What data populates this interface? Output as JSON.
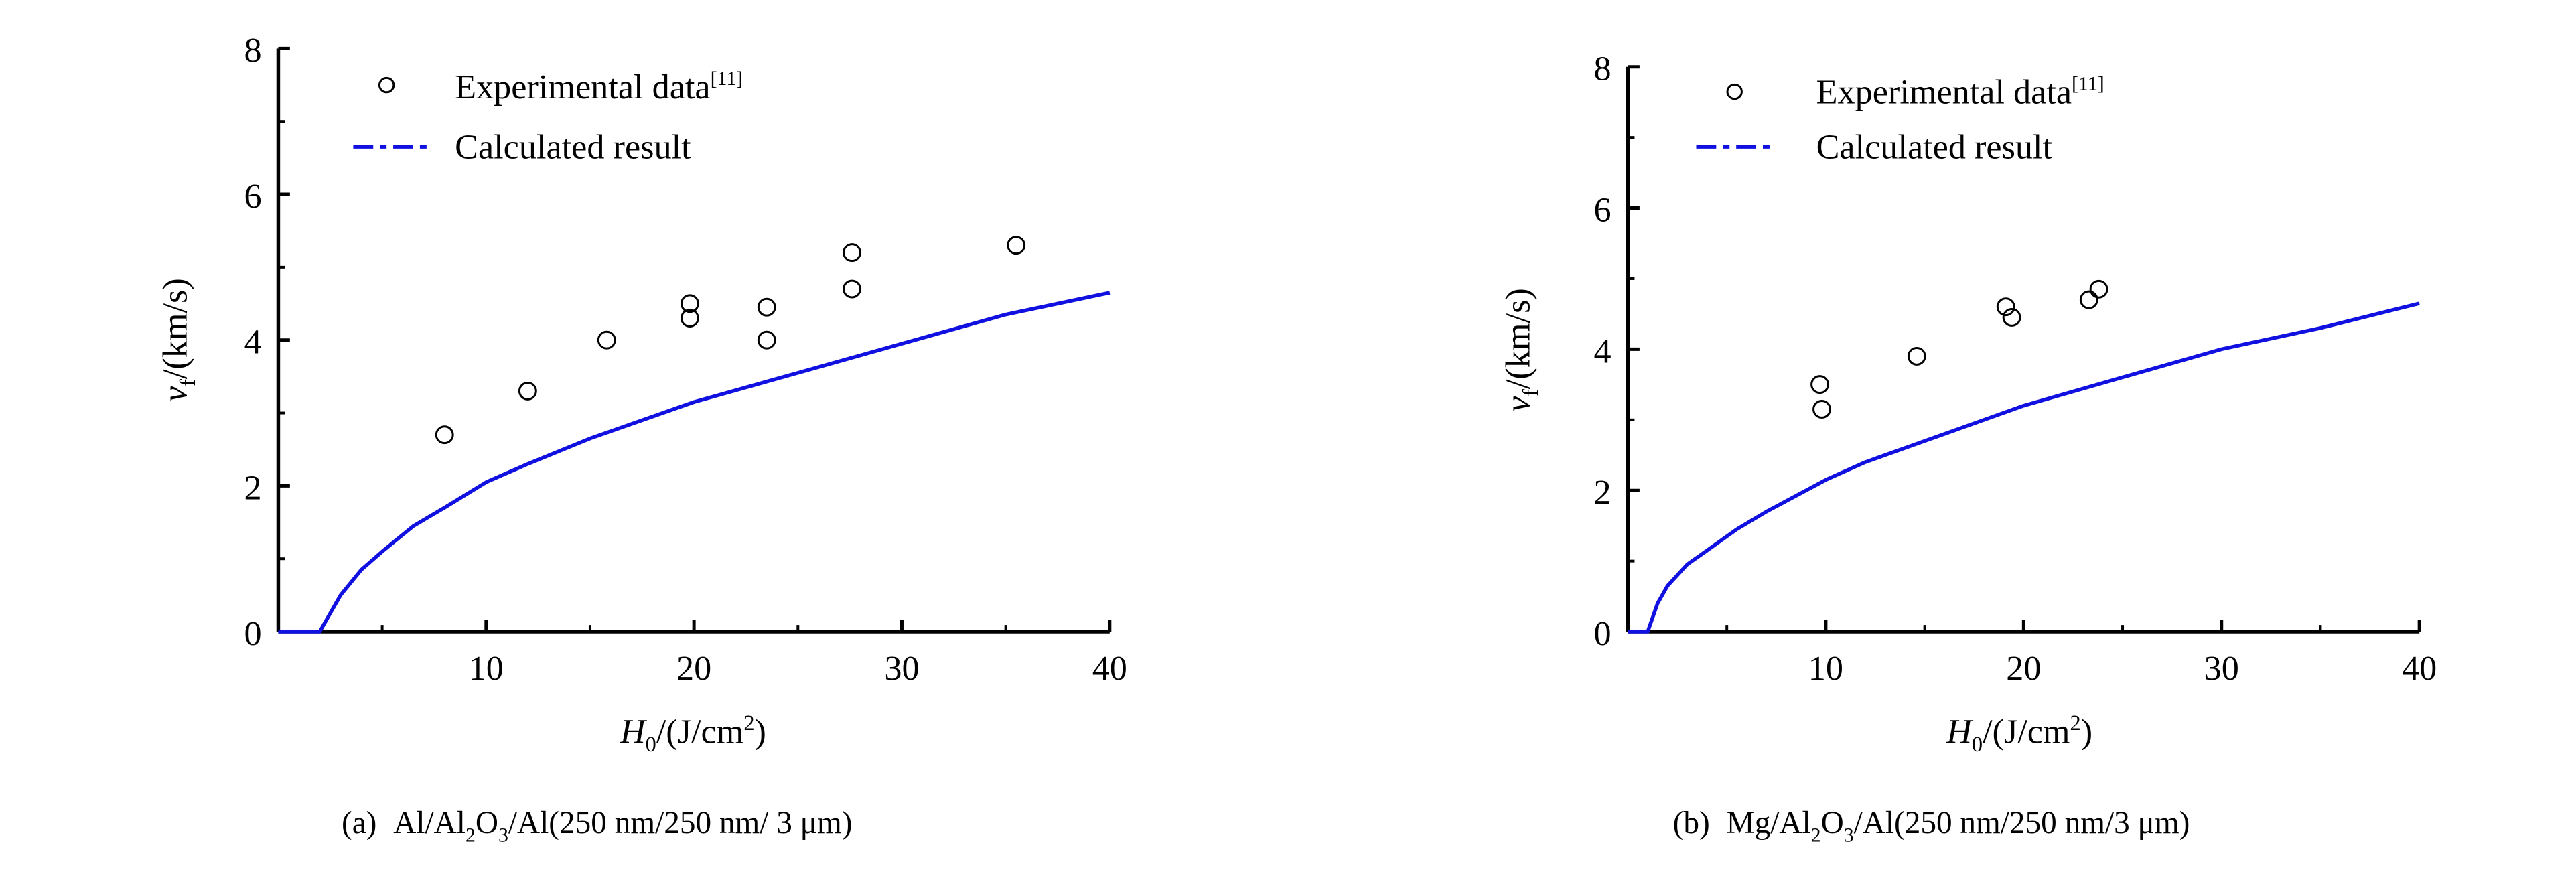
{
  "chart_data": [
    {
      "type": "scatter+line",
      "panel": "a",
      "caption": {
        "prefix": "(a)",
        "p1": "Al/Al",
        "sub1": "2",
        "p2": "O",
        "sub2": "3",
        "p3": "/Al(250 nm/250 nm/ 3 μm)"
      },
      "xlabel": {
        "var": "H",
        "sub": "0",
        "unit": "/(J/cm",
        "sup": "2",
        "close": ")"
      },
      "ylabel": {
        "var": "v",
        "sub": "f",
        "unit": "/(km/s)"
      },
      "xlim": [
        0,
        40
      ],
      "ylim": [
        0,
        8
      ],
      "xticks": [
        10,
        20,
        30,
        40
      ],
      "xminor": [
        5,
        15,
        25,
        35
      ],
      "yticks": [
        0,
        2,
        4,
        6,
        8
      ],
      "yminor": [
        1,
        3,
        5,
        7
      ],
      "grid": false,
      "legend": {
        "position": "top-left",
        "experimental": "Experimental data",
        "experimental_ref": "[11]",
        "calculated": "Calculated result"
      },
      "colors": {
        "calculated": "#1010e0",
        "experimental": "#000000"
      },
      "experimental": [
        [
          8,
          2.7
        ],
        [
          12,
          3.3
        ],
        [
          15.8,
          4.0
        ],
        [
          19.8,
          4.5
        ],
        [
          19.8,
          4.3
        ],
        [
          23.5,
          4.45
        ],
        [
          23.5,
          4.0
        ],
        [
          27.6,
          5.2
        ],
        [
          27.6,
          4.7
        ],
        [
          35.5,
          5.3
        ]
      ],
      "calculated": [
        [
          0,
          0
        ],
        [
          2,
          0
        ],
        [
          3,
          0.5
        ],
        [
          4,
          0.85
        ],
        [
          5,
          1.1
        ],
        [
          6.5,
          1.45
        ],
        [
          8,
          1.7
        ],
        [
          10,
          2.05
        ],
        [
          12,
          2.3
        ],
        [
          15,
          2.65
        ],
        [
          20,
          3.15
        ],
        [
          25,
          3.55
        ],
        [
          30,
          3.95
        ],
        [
          35,
          4.35
        ],
        [
          40,
          4.65
        ]
      ]
    },
    {
      "type": "scatter+line",
      "panel": "b",
      "caption": {
        "prefix": "(b)",
        "p1": "Mg/Al",
        "sub1": "2",
        "p2": "O",
        "sub2": "3",
        "p3": "/Al(250 nm/250 nm/3 μm)"
      },
      "xlabel": {
        "var": "H",
        "sub": "0",
        "unit": "/(J/cm",
        "sup": "2",
        "close": ")"
      },
      "ylabel": {
        "var": "v",
        "sub": "f",
        "unit": "/(km/s)"
      },
      "xlim": [
        0,
        40
      ],
      "ylim": [
        0,
        8
      ],
      "xticks": [
        10,
        20,
        30,
        40
      ],
      "xminor": [
        5,
        15,
        25,
        35
      ],
      "yticks": [
        0,
        2,
        4,
        6,
        8
      ],
      "yminor": [
        1,
        3,
        5,
        7
      ],
      "grid": false,
      "legend": {
        "position": "top-left",
        "experimental": "Experimental data",
        "experimental_ref": "[11]",
        "calculated": "Calculated result"
      },
      "colors": {
        "calculated": "#1010e0",
        "experimental": "#000000"
      },
      "experimental": [
        [
          9.7,
          3.5
        ],
        [
          9.8,
          3.15
        ],
        [
          14.6,
          3.9
        ],
        [
          19.1,
          4.6
        ],
        [
          19.4,
          4.45
        ],
        [
          23.3,
          4.7
        ],
        [
          23.8,
          4.85
        ]
      ],
      "calculated": [
        [
          0,
          0
        ],
        [
          1,
          0
        ],
        [
          1.5,
          0.4
        ],
        [
          2,
          0.65
        ],
        [
          3,
          0.95
        ],
        [
          4,
          1.15
        ],
        [
          5.5,
          1.45
        ],
        [
          7,
          1.7
        ],
        [
          10,
          2.15
        ],
        [
          12,
          2.4
        ],
        [
          15,
          2.7
        ],
        [
          20,
          3.2
        ],
        [
          25,
          3.6
        ],
        [
          30,
          4.0
        ],
        [
          35,
          4.3
        ],
        [
          40,
          4.65
        ]
      ]
    }
  ]
}
